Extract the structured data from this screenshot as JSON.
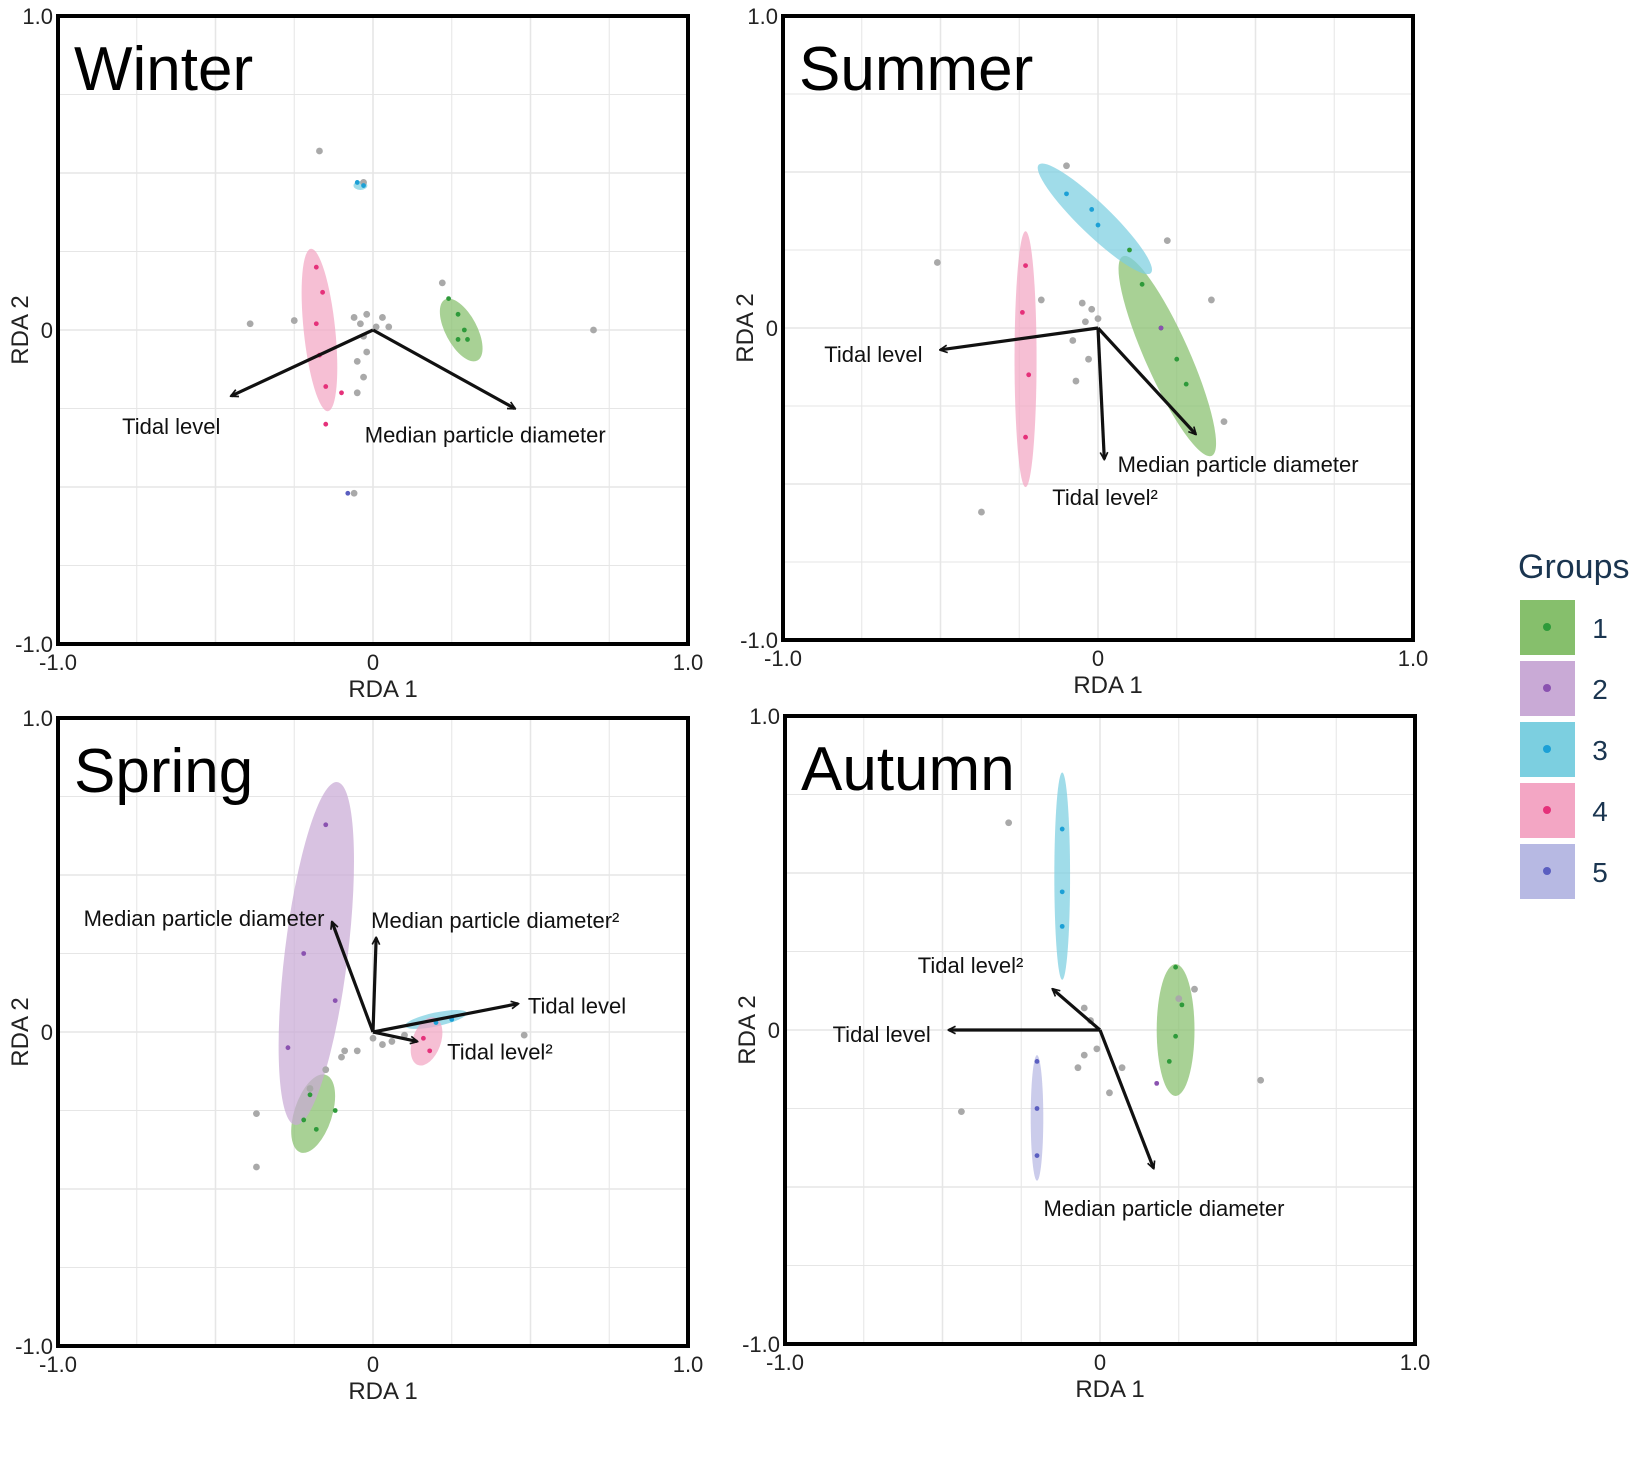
{
  "chart_data": [
    {
      "type": "scatter",
      "title": "Winter",
      "xlabel": "RDA 1",
      "ylabel": "RDA 2",
      "xlim": [
        -1.0,
        1.0
      ],
      "ylim": [
        -1.0,
        1.0
      ],
      "xticks": [
        "-1.0",
        "0",
        "1.0"
      ],
      "yticks": [
        "1.0",
        "0",
        "-1.0"
      ],
      "grid": true,
      "points_gray": [
        [
          -0.17,
          0.57
        ],
        [
          -0.03,
          0.47
        ],
        [
          -0.39,
          0.02
        ],
        [
          -0.25,
          0.03
        ],
        [
          -0.06,
          0.04
        ],
        [
          -0.02,
          0.05
        ],
        [
          0.03,
          0.04
        ],
        [
          -0.03,
          -0.02
        ],
        [
          -0.02,
          -0.07
        ],
        [
          -0.05,
          -0.1
        ],
        [
          -0.03,
          -0.15
        ],
        [
          -0.05,
          -0.2
        ],
        [
          0.01,
          0.01
        ],
        [
          0.7,
          0.0
        ],
        [
          0.22,
          0.15
        ],
        [
          -0.06,
          -0.52
        ],
        [
          0.05,
          0.01
        ],
        [
          -0.04,
          0.02
        ]
      ],
      "groups": [
        {
          "group": "1",
          "ellipse": {
            "cx": 0.28,
            "cy": 0.0,
            "rx": 0.05,
            "ry": 0.11,
            "angle": -28
          },
          "points": [
            [
              0.24,
              0.1
            ],
            [
              0.27,
              0.05
            ],
            [
              0.29,
              0.0
            ],
            [
              0.3,
              -0.03
            ],
            [
              0.27,
              -0.03
            ]
          ]
        },
        {
          "group": "3",
          "ellipse": {
            "cx": -0.04,
            "cy": 0.46,
            "rx": 0.022,
            "ry": 0.014,
            "angle": 0
          },
          "points": [
            [
              -0.05,
              0.47
            ],
            [
              -0.03,
              0.46
            ]
          ]
        },
        {
          "group": "4",
          "ellipse": {
            "cx": -0.17,
            "cy": 0.0,
            "rx": 0.05,
            "ry": 0.26,
            "angle": -6
          },
          "points": [
            [
              -0.18,
              0.2
            ],
            [
              -0.16,
              0.12
            ],
            [
              -0.18,
              0.02
            ],
            [
              -0.17,
              -0.08
            ],
            [
              -0.15,
              -0.18
            ],
            [
              -0.15,
              -0.3
            ],
            [
              -0.1,
              -0.2
            ]
          ]
        },
        {
          "group": "5",
          "ellipse": null,
          "points": [
            [
              -0.08,
              -0.52
            ]
          ]
        }
      ],
      "arrows": [
        {
          "label": "Tidal level",
          "end": [
            -0.45,
            -0.21
          ]
        },
        {
          "label": "Median particle diameter",
          "end": [
            0.45,
            -0.25
          ]
        }
      ]
    },
    {
      "type": "scatter",
      "title": "Summer",
      "xlabel": "RDA 1",
      "ylabel": "RDA 2",
      "xlim": [
        -1.0,
        1.0
      ],
      "ylim": [
        -1.0,
        1.0
      ],
      "xticks": [
        "-1.0",
        "0",
        "1.0"
      ],
      "yticks": [
        "1.0",
        "0",
        "-1.0"
      ],
      "grid": true,
      "points_gray": [
        [
          -0.1,
          0.52
        ],
        [
          0.22,
          0.28
        ],
        [
          -0.51,
          0.21
        ],
        [
          -0.18,
          0.09
        ],
        [
          0.36,
          0.09
        ],
        [
          -0.05,
          0.08
        ],
        [
          -0.02,
          0.06
        ],
        [
          -0.08,
          -0.04
        ],
        [
          -0.03,
          -0.1
        ],
        [
          -0.07,
          -0.17
        ],
        [
          0.4,
          -0.3
        ],
        [
          -0.37,
          -0.59
        ],
        [
          0.0,
          0.03
        ],
        [
          -0.04,
          0.02
        ]
      ],
      "groups": [
        {
          "group": "1",
          "ellipse": {
            "cx": 0.22,
            "cy": -0.09,
            "rx": 0.07,
            "ry": 0.35,
            "angle": -24
          },
          "points": [
            [
              0.1,
              0.25
            ],
            [
              0.14,
              0.14
            ],
            [
              0.2,
              0.0
            ],
            [
              0.25,
              -0.1
            ],
            [
              0.28,
              -0.18
            ]
          ]
        },
        {
          "group": "2",
          "ellipse": null,
          "points": [
            [
              0.2,
              0.0
            ]
          ]
        },
        {
          "group": "3",
          "ellipse": {
            "cx": -0.01,
            "cy": 0.35,
            "rx": 0.05,
            "ry": 0.25,
            "angle": -46
          },
          "points": [
            [
              -0.1,
              0.43
            ],
            [
              -0.02,
              0.38
            ],
            [
              0.0,
              0.33
            ]
          ]
        },
        {
          "group": "4",
          "ellipse": {
            "cx": -0.23,
            "cy": -0.1,
            "rx": 0.035,
            "ry": 0.41,
            "angle": 0
          },
          "points": [
            [
              -0.23,
              0.2
            ],
            [
              -0.24,
              0.05
            ],
            [
              -0.22,
              -0.15
            ],
            [
              -0.23,
              -0.35
            ]
          ]
        }
      ],
      "arrows": [
        {
          "label": "Tidal level",
          "end": [
            -0.5,
            -0.07
          ]
        },
        {
          "label": "Median particle diameter",
          "end": [
            0.31,
            -0.34
          ]
        },
        {
          "label": "Tidal level²",
          "end": [
            0.02,
            -0.42
          ]
        }
      ]
    },
    {
      "type": "scatter",
      "title": "Spring",
      "xlabel": "RDA 1",
      "ylabel": "RDA 2",
      "xlim": [
        -1.0,
        1.0
      ],
      "ylim": [
        -1.0,
        1.0
      ],
      "xticks": [
        "-1.0",
        "0",
        "1.0"
      ],
      "yticks": [
        "1.0",
        "0",
        "-1.0"
      ],
      "grid": true,
      "points_gray": [
        [
          -0.37,
          -0.26
        ],
        [
          -0.37,
          -0.43
        ],
        [
          0.48,
          -0.01
        ],
        [
          0.06,
          -0.03
        ],
        [
          0.03,
          -0.04
        ],
        [
          -0.05,
          -0.06
        ],
        [
          -0.1,
          -0.08
        ],
        [
          -0.15,
          -0.12
        ],
        [
          -0.2,
          -0.18
        ],
        [
          0.1,
          -0.01
        ],
        [
          -0.09,
          -0.06
        ],
        [
          0.0,
          -0.02
        ]
      ],
      "groups": [
        {
          "group": "1",
          "ellipse": {
            "cx": -0.19,
            "cy": -0.26,
            "rx": 0.06,
            "ry": 0.13,
            "angle": 18
          },
          "points": [
            [
              -0.2,
              -0.2
            ],
            [
              -0.22,
              -0.28
            ],
            [
              -0.18,
              -0.31
            ],
            [
              -0.12,
              -0.25
            ]
          ]
        },
        {
          "group": "2",
          "ellipse": {
            "cx": -0.18,
            "cy": 0.25,
            "rx": 0.1,
            "ry": 0.55,
            "angle": 7
          },
          "points": [
            [
              -0.15,
              0.66
            ],
            [
              -0.22,
              0.25
            ],
            [
              -0.27,
              -0.05
            ],
            [
              -0.12,
              0.1
            ]
          ]
        },
        {
          "group": "3",
          "ellipse": {
            "cx": 0.2,
            "cy": 0.04,
            "rx": 0.1,
            "ry": 0.022,
            "angle": -12
          },
          "points": [
            [
              0.2,
              0.03
            ],
            [
              0.25,
              0.04
            ]
          ]
        },
        {
          "group": "4",
          "ellipse": {
            "cx": 0.17,
            "cy": -0.03,
            "rx": 0.045,
            "ry": 0.08,
            "angle": 20
          },
          "points": [
            [
              0.16,
              -0.02
            ],
            [
              0.18,
              -0.06
            ]
          ]
        }
      ],
      "arrows": [
        {
          "label": "Median particle diameter",
          "end": [
            -0.13,
            0.35
          ]
        },
        {
          "label": "Median particle diameter²",
          "end": [
            0.01,
            0.3
          ]
        },
        {
          "label": "Tidal level",
          "end": [
            0.46,
            0.09
          ]
        },
        {
          "label": "Tidal level²",
          "end": [
            0.14,
            -0.03
          ]
        }
      ]
    },
    {
      "type": "scatter",
      "title": "Autumn",
      "xlabel": "RDA 1",
      "ylabel": "RDA 2",
      "xlim": [
        -1.0,
        1.0
      ],
      "ylim": [
        -1.0,
        1.0
      ],
      "xticks": [
        "-1.0",
        "0",
        "1.0"
      ],
      "yticks": [
        "1.0",
        "0",
        "-1.0"
      ],
      "grid": true,
      "points_gray": [
        [
          -0.29,
          0.66
        ],
        [
          -0.44,
          -0.26
        ],
        [
          0.51,
          -0.16
        ],
        [
          -0.05,
          0.07
        ],
        [
          -0.03,
          0.03
        ],
        [
          -0.01,
          -0.06
        ],
        [
          -0.05,
          -0.08
        ],
        [
          -0.07,
          -0.12
        ],
        [
          0.07,
          -0.12
        ],
        [
          0.03,
          -0.2
        ],
        [
          0.3,
          0.13
        ],
        [
          0.25,
          0.1
        ]
      ],
      "groups": [
        {
          "group": "1",
          "ellipse": {
            "cx": 0.24,
            "cy": 0.0,
            "rx": 0.06,
            "ry": 0.21,
            "angle": 0
          },
          "points": [
            [
              0.24,
              0.2
            ],
            [
              0.26,
              0.08
            ],
            [
              0.24,
              -0.02
            ],
            [
              0.22,
              -0.1
            ]
          ]
        },
        {
          "group": "2",
          "ellipse": null,
          "points": [
            [
              0.18,
              -0.17
            ]
          ]
        },
        {
          "group": "3",
          "ellipse": {
            "cx": -0.12,
            "cy": 0.49,
            "rx": 0.025,
            "ry": 0.33,
            "angle": 0
          },
          "points": [
            [
              -0.12,
              0.64
            ],
            [
              -0.12,
              0.44
            ],
            [
              -0.12,
              0.33
            ]
          ]
        },
        {
          "group": "5",
          "ellipse": {
            "cx": -0.2,
            "cy": -0.28,
            "rx": 0.02,
            "ry": 0.2,
            "angle": 0
          },
          "points": [
            [
              -0.2,
              -0.1
            ],
            [
              -0.2,
              -0.25
            ],
            [
              -0.2,
              -0.4
            ]
          ]
        }
      ],
      "arrows": [
        {
          "label": "Tidal level",
          "end": [
            -0.48,
            0.0
          ]
        },
        {
          "label": "Tidal level²",
          "end": [
            -0.15,
            0.13
          ]
        },
        {
          "label": "Median particle diameter",
          "end": [
            0.17,
            -0.44
          ]
        }
      ]
    }
  ],
  "legend": {
    "title": "Groups",
    "placement": "right",
    "items": [
      {
        "label": "1",
        "fill": "#86bf6c",
        "dot": "#2e9a3a"
      },
      {
        "label": "2",
        "fill": "#c9aad6",
        "dot": "#8a52b0"
      },
      {
        "label": "3",
        "fill": "#7ccfe0",
        "dot": "#1ca0d6"
      },
      {
        "label": "4",
        "fill": "#f3a6c4",
        "dot": "#e5317a"
      },
      {
        "label": "5",
        "fill": "#b7b9e3",
        "dot": "#5a5ec0"
      }
    ]
  },
  "colors": {
    "gray_point": "#a9a9a9",
    "arrow": "#111111",
    "grid": "#e6e6e6",
    "frame": "#000000"
  }
}
